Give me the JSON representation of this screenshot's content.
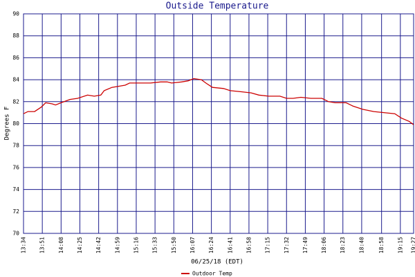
{
  "chart_data": {
    "type": "line",
    "title": "Outside Temperature",
    "x_label": "06/25/18 (EDT)",
    "y_label": "Degrees F",
    "x": [
      "13:34",
      "13:38",
      "13:44",
      "13:50",
      "13:54",
      "14:00",
      "14:03",
      "14:08",
      "14:16",
      "14:23",
      "14:32",
      "14:38",
      "14:44",
      "14:47",
      "14:54",
      "15:00",
      "15:06",
      "15:10",
      "15:19",
      "15:29",
      "15:38",
      "15:44",
      "15:48",
      "15:57",
      "16:03",
      "16:08",
      "16:15",
      "16:19",
      "16:25",
      "16:35",
      "16:41",
      "16:51",
      "17:00",
      "17:07",
      "17:16",
      "17:26",
      "17:32",
      "17:38",
      "17:45",
      "17:54",
      "18:04",
      "18:10",
      "18:16",
      "18:26",
      "18:32",
      "18:41",
      "18:51",
      "19:00",
      "19:10",
      "19:16",
      "19:23",
      "19:27"
    ],
    "series": [
      {
        "name": "Outdoor Temp",
        "color": "#cc0000",
        "values": [
          80.9,
          81.1,
          81.1,
          81.5,
          81.9,
          81.8,
          81.7,
          81.9,
          82.2,
          82.3,
          82.6,
          82.5,
          82.6,
          83.0,
          83.3,
          83.4,
          83.5,
          83.7,
          83.7,
          83.7,
          83.8,
          83.8,
          83.7,
          83.8,
          83.9,
          84.1,
          84.0,
          83.7,
          83.3,
          83.2,
          83.0,
          82.9,
          82.8,
          82.6,
          82.5,
          82.5,
          82.3,
          82.3,
          82.4,
          82.3,
          82.3,
          82.0,
          81.9,
          81.9,
          81.6,
          81.3,
          81.1,
          81.0,
          80.9,
          80.5,
          80.2,
          79.9
        ]
      }
    ],
    "xlim": [
      "13:34",
      "19:27"
    ],
    "xticks": [
      "13:34",
      "13:51",
      "14:08",
      "14:25",
      "14:42",
      "14:59",
      "15:16",
      "15:33",
      "15:50",
      "16:07",
      "16:24",
      "16:41",
      "16:58",
      "17:15",
      "17:32",
      "17:49",
      "18:06",
      "18:23",
      "18:40",
      "18:58",
      "19:15",
      "19:27"
    ],
    "ylim": [
      70,
      90
    ],
    "yticks": [
      70,
      72,
      74,
      76,
      78,
      80,
      82,
      84,
      86,
      88,
      90
    ],
    "grid": true
  }
}
